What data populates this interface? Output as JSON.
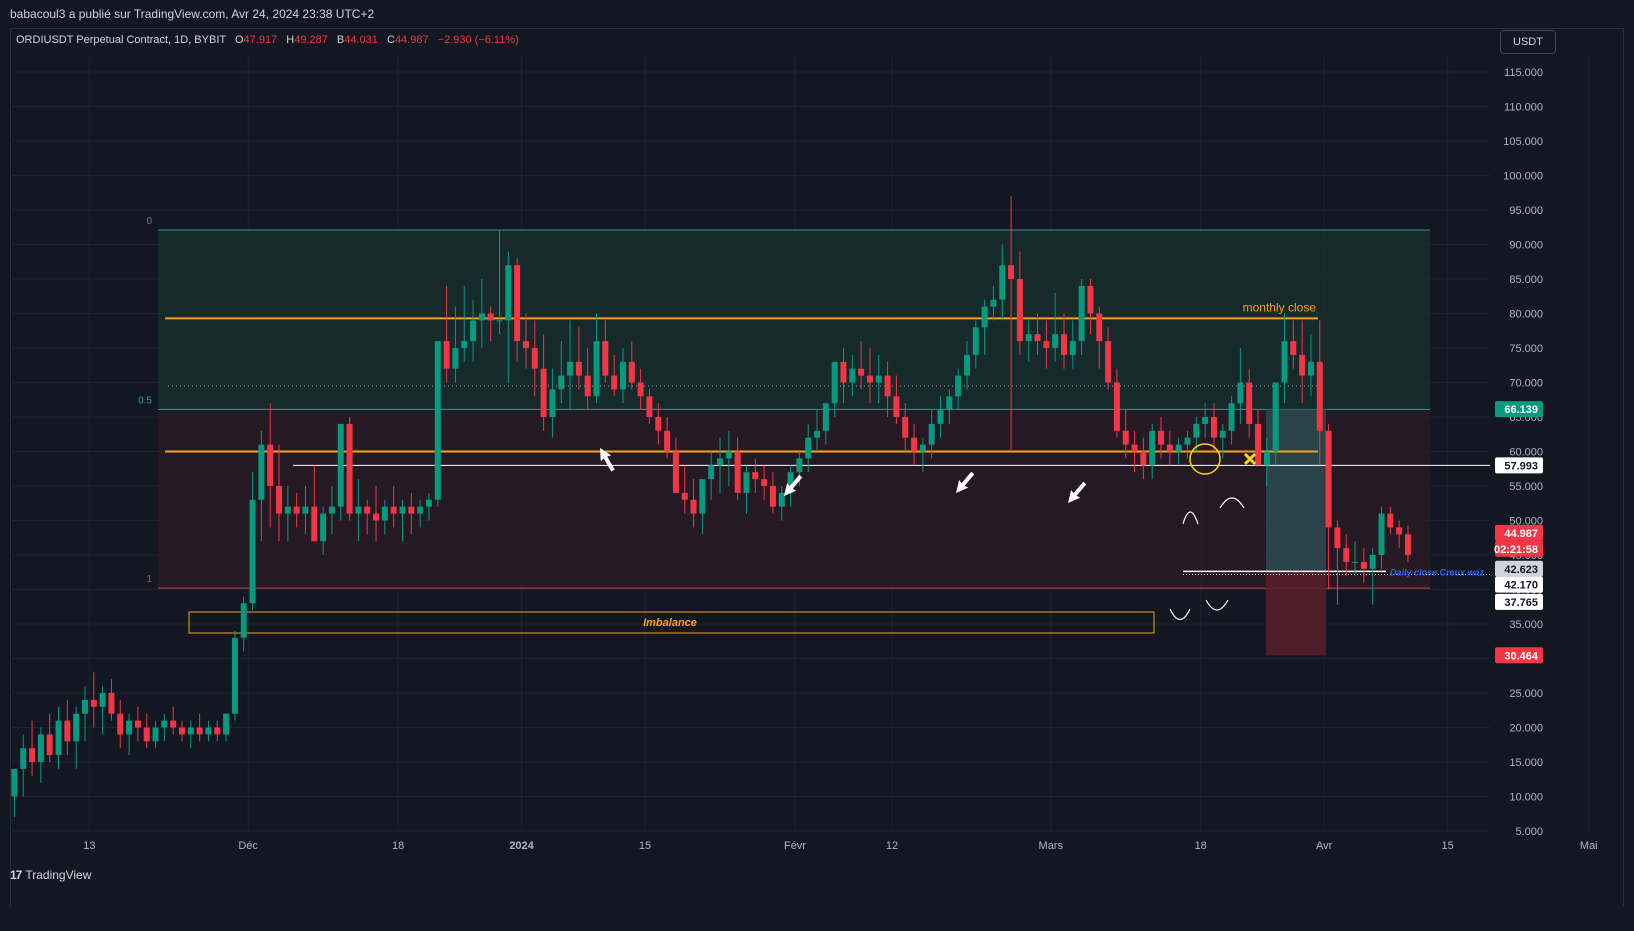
{
  "header": {
    "publisher": "babacoul3 a publié sur TradingView.com, Avr 24, 2024 23:38 UTC+2"
  },
  "legend": {
    "symbol": "ORDIUSDT Perpetual Contract, 1D, BYBIT",
    "o_label": "O",
    "o_value": "47.917",
    "h_label": "H",
    "h_value": "49.287",
    "b_label": "B",
    "b_value": "44.031",
    "c_label": "C",
    "c_value": "44.987",
    "change": "−2.930 (−6.11%)"
  },
  "currency_button": "USDT",
  "footer": {
    "brand": "TradingView"
  },
  "colors": {
    "background": "#131722",
    "up": "#089981",
    "down": "#f23645",
    "orange": "#f7a21b",
    "grid": "#1e222d",
    "fib_zone_upper": "#18302f",
    "fib_zone_lower": "#2a1b24"
  },
  "chart_data": {
    "type": "candlestick",
    "symbol": "ORDIUSDT Perpetual Contract",
    "timeframe": "1D",
    "exchange": "BYBIT",
    "y_axis": {
      "labels": [
        "115.000",
        "110.000",
        "105.000",
        "100.000",
        "95.000",
        "90.000",
        "85.000",
        "80.000",
        "75.000",
        "70.000",
        "65.000",
        "60.000",
        "55.000",
        "50.000",
        "45.000",
        "40.000",
        "35.000",
        "30.000",
        "25.000",
        "20.000",
        "15.000",
        "10.000",
        "5.000"
      ],
      "min": 5,
      "max": 115,
      "unit": "USDT"
    },
    "x_axis": {
      "ticks": [
        {
          "label": "13",
          "date": "2023-11-13"
        },
        {
          "label": "Déc",
          "date": "2023-12-01"
        },
        {
          "label": "18",
          "date": "2023-12-18"
        },
        {
          "label": "2024",
          "date": "2024-01-01"
        },
        {
          "label": "15",
          "date": "2024-01-15"
        },
        {
          "label": "Févr",
          "date": "2024-02-01"
        },
        {
          "label": "12",
          "date": "2024-02-12"
        },
        {
          "label": "Mars",
          "date": "2024-03-01"
        },
        {
          "label": "18",
          "date": "2024-03-18"
        },
        {
          "label": "Avr",
          "date": "2024-04-01"
        },
        {
          "label": "15",
          "date": "2024-04-15"
        },
        {
          "label": "Mai",
          "date": "2024-05-01"
        },
        {
          "label": "13",
          "date": "2024-05-13"
        }
      ]
    },
    "first_date": "2023-11-04",
    "ohlc": [
      [
        10,
        14,
        7,
        14
      ],
      [
        14,
        19,
        10,
        17
      ],
      [
        17,
        21,
        13,
        15
      ],
      [
        15,
        20,
        12,
        19
      ],
      [
        19,
        22,
        15,
        16
      ],
      [
        16,
        23,
        14,
        21
      ],
      [
        21,
        24,
        16,
        18
      ],
      [
        18,
        23,
        14,
        22
      ],
      [
        22,
        26,
        18,
        24
      ],
      [
        24,
        28,
        20,
        23
      ],
      [
        23,
        26,
        19,
        25
      ],
      [
        25,
        27,
        21,
        22
      ],
      [
        22,
        24,
        17,
        19
      ],
      [
        19,
        22,
        16,
        21
      ],
      [
        21,
        23,
        18,
        20
      ],
      [
        20,
        22,
        17,
        18
      ],
      [
        18,
        21,
        17,
        20
      ],
      [
        20,
        22,
        18,
        21
      ],
      [
        21,
        23,
        19,
        20
      ],
      [
        20,
        21,
        18,
        19
      ],
      [
        19,
        21,
        17,
        20
      ],
      [
        20,
        22,
        18,
        19
      ],
      [
        19,
        21,
        18,
        20
      ],
      [
        20,
        21,
        18,
        19
      ],
      [
        19,
        22,
        18,
        22
      ],
      [
        22,
        34,
        21,
        33
      ],
      [
        33,
        39,
        31,
        38
      ],
      [
        38,
        57,
        37,
        53
      ],
      [
        53,
        63,
        47,
        61
      ],
      [
        61,
        67,
        49,
        55
      ],
      [
        55,
        61,
        47,
        51
      ],
      [
        51,
        55,
        47,
        52
      ],
      [
        52,
        54,
        49,
        51
      ],
      [
        51,
        55,
        48,
        52
      ],
      [
        52,
        58,
        47,
        47
      ],
      [
        47,
        52,
        45,
        51
      ],
      [
        51,
        55,
        48,
        52
      ],
      [
        52,
        64,
        50,
        64
      ],
      [
        64,
        65,
        50,
        51
      ],
      [
        51,
        56,
        47,
        52
      ],
      [
        52,
        53,
        48,
        51
      ],
      [
        51,
        55,
        47,
        50
      ],
      [
        50,
        53,
        48,
        52
      ],
      [
        52,
        55,
        49,
        51
      ],
      [
        51,
        53,
        47,
        52
      ],
      [
        52,
        54,
        48,
        51
      ],
      [
        51,
        53,
        49,
        52
      ],
      [
        52,
        54,
        50,
        53
      ],
      [
        53,
        76,
        52,
        76
      ],
      [
        76,
        84,
        70,
        72
      ],
      [
        72,
        81,
        70,
        75
      ],
      [
        75,
        84,
        73,
        76
      ],
      [
        76,
        82,
        73,
        79
      ],
      [
        79,
        85,
        75,
        80
      ],
      [
        80,
        81,
        76,
        79
      ],
      [
        79,
        92,
        77,
        79
      ],
      [
        79,
        89,
        70,
        87
      ],
      [
        87,
        88,
        73,
        76
      ],
      [
        76,
        80,
        72,
        75
      ],
      [
        75,
        79,
        68,
        72
      ],
      [
        72,
        77,
        63,
        65
      ],
      [
        65,
        72,
        62,
        69
      ],
      [
        69,
        76,
        67,
        71
      ],
      [
        71,
        79,
        66,
        73
      ],
      [
        73,
        78,
        69,
        71
      ],
      [
        71,
        75,
        66,
        68
      ],
      [
        68,
        80,
        67,
        76
      ],
      [
        76,
        79,
        70,
        71
      ],
      [
        71,
        74,
        68,
        69
      ],
      [
        69,
        75,
        67,
        73
      ],
      [
        73,
        76,
        69,
        70
      ],
      [
        70,
        72,
        66,
        68
      ],
      [
        68,
        69,
        64,
        65
      ],
      [
        65,
        67,
        61,
        63
      ],
      [
        63,
        65,
        59,
        60
      ],
      [
        60,
        62,
        55,
        54
      ],
      [
        54,
        58,
        51,
        53
      ],
      [
        53,
        56,
        49,
        51
      ],
      [
        51,
        55,
        48,
        56
      ],
      [
        56,
        60,
        53,
        58
      ],
      [
        58,
        62,
        54,
        59
      ],
      [
        59,
        63,
        55,
        60
      ],
      [
        60,
        62,
        53,
        54
      ],
      [
        54,
        58,
        51,
        57
      ],
      [
        57,
        59,
        54,
        56
      ],
      [
        56,
        58,
        53,
        55
      ],
      [
        55,
        57,
        51,
        52
      ],
      [
        52,
        55,
        50,
        54
      ],
      [
        54,
        58,
        52,
        57
      ],
      [
        57,
        60,
        55,
        59
      ],
      [
        59,
        64,
        57,
        62
      ],
      [
        62,
        66,
        60,
        63
      ],
      [
        63,
        67,
        61,
        67
      ],
      [
        67,
        73,
        65,
        73
      ],
      [
        73,
        75,
        67,
        70
      ],
      [
        70,
        74,
        68,
        72
      ],
      [
        72,
        76,
        69,
        71
      ],
      [
        71,
        75,
        67,
        70
      ],
      [
        70,
        74,
        67,
        71
      ],
      [
        71,
        73,
        65,
        68
      ],
      [
        68,
        71,
        64,
        65
      ],
      [
        65,
        67,
        60,
        62
      ],
      [
        62,
        64,
        58,
        60
      ],
      [
        60,
        62,
        57,
        61
      ],
      [
        61,
        66,
        59,
        64
      ],
      [
        64,
        68,
        62,
        66
      ],
      [
        66,
        69,
        64,
        68
      ],
      [
        68,
        72,
        66,
        71
      ],
      [
        71,
        76,
        69,
        74
      ],
      [
        74,
        79,
        72,
        78
      ],
      [
        78,
        82,
        74,
        81
      ],
      [
        81,
        84,
        79,
        82
      ],
      [
        82,
        90,
        79,
        87
      ],
      [
        87,
        97,
        60,
        85
      ],
      [
        85,
        89,
        74,
        76
      ],
      [
        76,
        79,
        73,
        77
      ],
      [
        77,
        80,
        74,
        76
      ],
      [
        76,
        79,
        72,
        75
      ],
      [
        75,
        83,
        73,
        77
      ],
      [
        77,
        80,
        72,
        74
      ],
      [
        74,
        79,
        72,
        76
      ],
      [
        76,
        85,
        74,
        84
      ],
      [
        84,
        85,
        77,
        80
      ],
      [
        80,
        81,
        72,
        76
      ],
      [
        76,
        78,
        69,
        70
      ],
      [
        70,
        72,
        62,
        63
      ],
      [
        63,
        66,
        59,
        61
      ],
      [
        61,
        63,
        57,
        60
      ],
      [
        60,
        62,
        56,
        58
      ],
      [
        58,
        64,
        56,
        63
      ],
      [
        63,
        65,
        59,
        61
      ],
      [
        61,
        63,
        58,
        60
      ],
      [
        60,
        62,
        58,
        61
      ],
      [
        61,
        63,
        59,
        62
      ],
      [
        62,
        65,
        60,
        64
      ],
      [
        64,
        67,
        62,
        65
      ],
      [
        65,
        67,
        60,
        62
      ],
      [
        62,
        64,
        59,
        63
      ],
      [
        63,
        68,
        61,
        67
      ],
      [
        67,
        75,
        64,
        70
      ],
      [
        70,
        72,
        62,
        64
      ],
      [
        64,
        66,
        59,
        58
      ],
      [
        58,
        62,
        55,
        60
      ],
      [
        60,
        70,
        58,
        70
      ],
      [
        70,
        80,
        67,
        76
      ],
      [
        76,
        79,
        72,
        74
      ],
      [
        74,
        79,
        67,
        71
      ],
      [
        71,
        77,
        68,
        73
      ],
      [
        73,
        79,
        58,
        63
      ],
      [
        63,
        64,
        40,
        49
      ],
      [
        49,
        50,
        37.8,
        46
      ],
      [
        46,
        48,
        42,
        44
      ],
      [
        44,
        47,
        42,
        44
      ],
      [
        44,
        46,
        41,
        43
      ],
      [
        43,
        46,
        37.8,
        45
      ],
      [
        45,
        52,
        43,
        51
      ],
      [
        51,
        52,
        48,
        49
      ],
      [
        49,
        50,
        46,
        48
      ],
      [
        48,
        49.3,
        44,
        45
      ]
    ],
    "last_price": "44.987",
    "countdown": "02:21:58",
    "price_labels": [
      {
        "value": "66.139",
        "style": "teal"
      },
      {
        "value": "57.993",
        "style": "white"
      },
      {
        "value": "44.987",
        "style": "red"
      },
      {
        "value": "02:21:58",
        "style": "red"
      },
      {
        "value": "42.623",
        "style": "gray"
      },
      {
        "value": "42.170",
        "style": "white"
      },
      {
        "value": "37.765",
        "style": "white"
      },
      {
        "value": "30.464",
        "style": "red"
      }
    ],
    "fib": {
      "labels": [
        "0",
        "0.5",
        "1"
      ],
      "levels": [
        92.1,
        66.1,
        40.2
      ],
      "mid_dotted": 69.5
    },
    "horizontal_lines": [
      {
        "label": "monthly close",
        "price": 79.3,
        "color": "orange"
      },
      {
        "price": 60.0,
        "color": "orange"
      },
      {
        "price": 57.993,
        "color": "white"
      },
      {
        "price": 42.623,
        "color": "white"
      },
      {
        "price": 42.17,
        "color": "white",
        "style": "dotted"
      }
    ],
    "annotations": {
      "monthly_close": "monthly close",
      "imbalance": "Imbalance",
      "daily_close": "Daily close Creux waz"
    },
    "position": {
      "entry": 42.623,
      "target": 66.139,
      "stop": 30.464
    }
  }
}
